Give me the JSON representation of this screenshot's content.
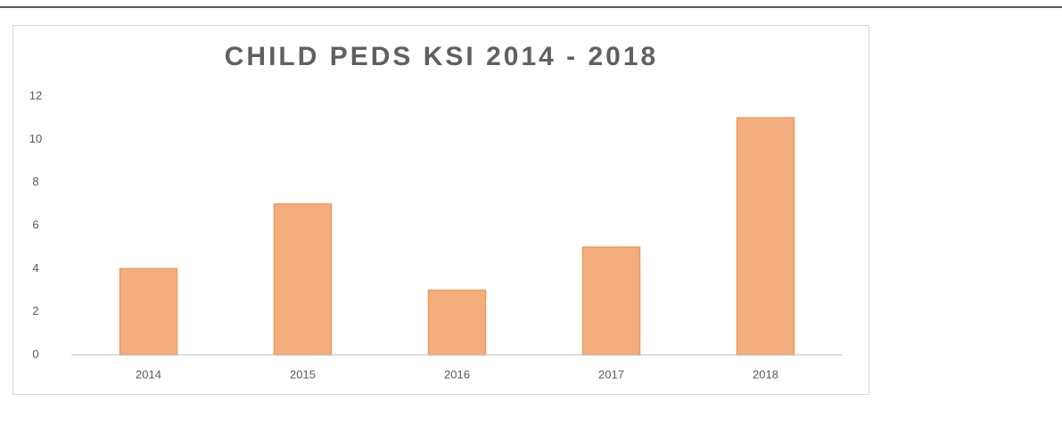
{
  "chart_data": {
    "type": "bar",
    "title": "CHILD PEDS KSI 2014 - 2018",
    "categories": [
      "2014",
      "2015",
      "2016",
      "2017",
      "2018"
    ],
    "values": [
      4,
      7,
      3,
      5,
      11
    ],
    "color": "#f4ae7e",
    "ylim": [
      0,
      12
    ],
    "yticks": [
      0,
      2,
      4,
      6,
      8,
      10,
      12
    ],
    "grid": false
  }
}
